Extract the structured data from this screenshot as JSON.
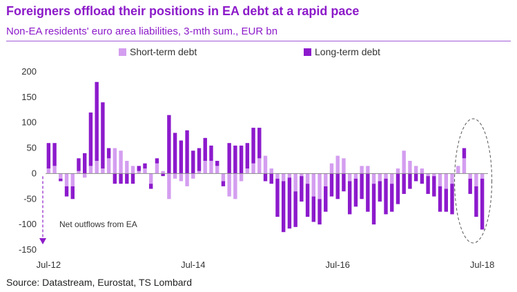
{
  "chart_data": {
    "type": "bar",
    "stacked": true,
    "title": "Foreigners offload their positions in EA debt at a rapid pace",
    "subtitle": "Non-EA residents' euro area liabilities, 3-mth sum., EUR bn",
    "source": "Source: Datastream, Eurostat, TS Lombard",
    "ylim": [
      -150,
      200
    ],
    "yticks": [
      200,
      150,
      100,
      50,
      0,
      -50,
      -100,
      -150
    ],
    "xtick_labels": [
      {
        "index": 0,
        "label": "Jul-12"
      },
      {
        "index": 24,
        "label": "Jul-14"
      },
      {
        "index": 48,
        "label": "Jul-16"
      },
      {
        "index": 72,
        "label": "Jul-18"
      }
    ],
    "categories": [
      "2012-07",
      "2012-08",
      "2012-09",
      "2012-10",
      "2012-11",
      "2012-12",
      "2013-01",
      "2013-02",
      "2013-03",
      "2013-04",
      "2013-05",
      "2013-06",
      "2013-07",
      "2013-08",
      "2013-09",
      "2013-10",
      "2013-11",
      "2013-12",
      "2014-01",
      "2014-02",
      "2014-03",
      "2014-04",
      "2014-05",
      "2014-06",
      "2014-07",
      "2014-08",
      "2014-09",
      "2014-10",
      "2014-11",
      "2014-12",
      "2015-01",
      "2015-02",
      "2015-03",
      "2015-04",
      "2015-05",
      "2015-06",
      "2015-07",
      "2015-08",
      "2015-09",
      "2015-10",
      "2015-11",
      "2015-12",
      "2016-01",
      "2016-02",
      "2016-03",
      "2016-04",
      "2016-05",
      "2016-06",
      "2016-07",
      "2016-08",
      "2016-09",
      "2016-10",
      "2016-11",
      "2016-12",
      "2017-01",
      "2017-02",
      "2017-03",
      "2017-04",
      "2017-05",
      "2017-06",
      "2017-07",
      "2017-08",
      "2017-09",
      "2017-10",
      "2017-11",
      "2017-12",
      "2018-01",
      "2018-02",
      "2018-03",
      "2018-04",
      "2018-05",
      "2018-06",
      "2018-07"
    ],
    "series": [
      {
        "name": "Short-term debt",
        "color": "#d49ef0",
        "values": [
          10,
          15,
          -10,
          -25,
          -25,
          5,
          -8,
          15,
          25,
          10,
          30,
          50,
          45,
          25,
          15,
          5,
          10,
          -20,
          20,
          5,
          -50,
          -10,
          -15,
          -25,
          -10,
          5,
          25,
          25,
          15,
          -15,
          -45,
          -50,
          -15,
          10,
          20,
          30,
          35,
          10,
          -10,
          -15,
          -8,
          -35,
          -5,
          -20,
          -45,
          -50,
          -25,
          20,
          35,
          30,
          -15,
          -10,
          15,
          15,
          -20,
          -15,
          -10,
          -20,
          10,
          45,
          25,
          15,
          10,
          -5,
          -5,
          -25,
          -30,
          -20,
          15,
          30,
          -10,
          -25,
          -10
        ]
      },
      {
        "name": "Long-term debt",
        "color": "#8c1acc",
        "values": [
          50,
          45,
          -5,
          -20,
          -25,
          25,
          40,
          105,
          155,
          130,
          20,
          -20,
          -20,
          -20,
          -20,
          10,
          10,
          -10,
          10,
          -5,
          115,
          80,
          65,
          85,
          45,
          45,
          45,
          30,
          10,
          -10,
          60,
          55,
          55,
          50,
          70,
          60,
          -15,
          -20,
          -75,
          -100,
          -100,
          -70,
          -50,
          -65,
          -50,
          -50,
          -50,
          -45,
          -50,
          -35,
          -65,
          -55,
          -50,
          -75,
          -80,
          -40,
          -70,
          -55,
          -60,
          -40,
          -30,
          -15,
          -20,
          -35,
          -40,
          -50,
          -45,
          -60,
          0,
          20,
          -30,
          -60,
          -100
        ]
      }
    ],
    "legend": {
      "position": "top",
      "items": [
        "Short-term debt",
        "Long-term debt"
      ]
    },
    "annotations": [
      {
        "text": "Net outflows from EA",
        "type": "arrow-down"
      },
      {
        "type": "ellipse",
        "target": "last-four-months"
      }
    ],
    "colors": {
      "title": "#8c1ac9",
      "short_term": "#d49ef0",
      "long_term": "#8c1acc"
    }
  }
}
